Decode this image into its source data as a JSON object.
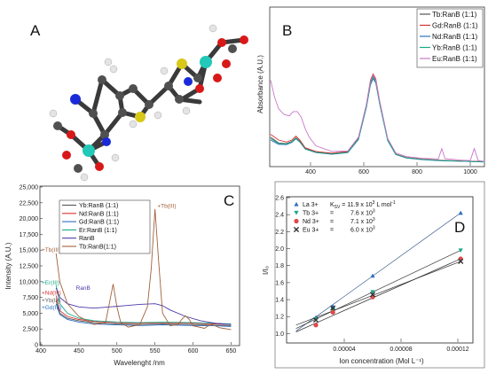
{
  "panels": [
    {
      "label": "A"
    },
    {
      "label": "B"
    },
    {
      "label": "C"
    },
    {
      "label": "D"
    }
  ],
  "colors": {
    "atom_carbon": "#505050",
    "atom_oxygen": "#d81818",
    "atom_nitrogen": "#1a2ad8",
    "atom_sulfur": "#d8c818",
    "atom_metal": "#22c8b8",
    "atom_hydrogen": "#e4e4e4"
  },
  "chart_data": [
    {
      "type": "line",
      "panel": "B",
      "xlabel": "",
      "ylabel": "Absorbance (A.U.)",
      "xlim": [
        250,
        1050
      ],
      "ylim": [
        0,
        0.55
      ],
      "x_ticks": [
        400,
        600,
        800,
        1000
      ],
      "legend_position": "top-right",
      "series": [
        {
          "name": "Tb:RanB (1:1)",
          "color": "#555555",
          "x": [
            250,
            280,
            310,
            330,
            345,
            360,
            380,
            420,
            480,
            540,
            580,
            610,
            625,
            635,
            645,
            660,
            690,
            720,
            760,
            820,
            900,
            1000,
            1050
          ],
          "y": [
            0.1,
            0.08,
            0.078,
            0.085,
            0.098,
            0.086,
            0.06,
            0.048,
            0.042,
            0.048,
            0.095,
            0.21,
            0.29,
            0.315,
            0.298,
            0.22,
            0.09,
            0.04,
            0.028,
            0.022,
            0.018,
            0.015,
            0.014
          ]
        },
        {
          "name": "Gd:RanB (1:1)",
          "color": "#d83030",
          "x": [
            250,
            280,
            310,
            330,
            345,
            360,
            380,
            420,
            480,
            540,
            580,
            610,
            625,
            635,
            645,
            660,
            690,
            720,
            760,
            820,
            900,
            1000,
            1050
          ],
          "y": [
            0.11,
            0.09,
            0.083,
            0.09,
            0.104,
            0.09,
            0.063,
            0.05,
            0.044,
            0.05,
            0.098,
            0.215,
            0.3,
            0.322,
            0.305,
            0.225,
            0.092,
            0.041,
            0.029,
            0.023,
            0.019,
            0.016,
            0.015
          ]
        },
        {
          "name": "Nd:RanB (1:1)",
          "color": "#2d6fbe",
          "x": [
            250,
            280,
            310,
            330,
            345,
            360,
            380,
            420,
            480,
            540,
            580,
            610,
            625,
            635,
            645,
            660,
            690,
            720,
            760,
            820,
            900,
            1000,
            1050
          ],
          "y": [
            0.09,
            0.075,
            0.074,
            0.082,
            0.094,
            0.083,
            0.058,
            0.046,
            0.04,
            0.046,
            0.092,
            0.205,
            0.283,
            0.305,
            0.29,
            0.215,
            0.088,
            0.039,
            0.027,
            0.021,
            0.017,
            0.015,
            0.013
          ]
        },
        {
          "name": "Yb:RanB (1:1)",
          "color": "#18a888",
          "x": [
            250,
            280,
            310,
            330,
            345,
            360,
            380,
            420,
            480,
            540,
            580,
            610,
            625,
            635,
            645,
            660,
            690,
            720,
            760,
            820,
            900,
            1000,
            1050
          ],
          "y": [
            0.095,
            0.078,
            0.076,
            0.084,
            0.096,
            0.084,
            0.059,
            0.047,
            0.041,
            0.047,
            0.094,
            0.208,
            0.287,
            0.31,
            0.294,
            0.218,
            0.089,
            0.04,
            0.028,
            0.022,
            0.018,
            0.015,
            0.014
          ]
        },
        {
          "name": "Eu:RanB (1:1)",
          "color": "#c878c8",
          "x": [
            250,
            265,
            280,
            300,
            320,
            335,
            350,
            365,
            380,
            395,
            420,
            480,
            540,
            580,
            610,
            625,
            635,
            645,
            660,
            690,
            720,
            760,
            820,
            880,
            893,
            905,
            960,
            1000,
            1015,
            1030,
            1050
          ],
          "y": [
            0.3,
            0.24,
            0.2,
            0.18,
            0.175,
            0.19,
            0.19,
            0.17,
            0.13,
            0.1,
            0.07,
            0.05,
            0.052,
            0.1,
            0.215,
            0.295,
            0.318,
            0.3,
            0.225,
            0.095,
            0.045,
            0.032,
            0.026,
            0.024,
            0.06,
            0.025,
            0.02,
            0.018,
            0.06,
            0.018,
            0.016
          ]
        }
      ]
    },
    {
      "type": "line",
      "panel": "C",
      "xlabel": "Wavelenght /nm",
      "ylabel": "Intensity (A.U.)",
      "xlim": [
        400,
        660
      ],
      "ylim": [
        0,
        25000
      ],
      "x_ticks": [
        400,
        450,
        500,
        550,
        600,
        650
      ],
      "y_ticks": [
        0,
        2500,
        5000,
        7500,
        10000,
        12500,
        15000,
        17500,
        20000,
        22500,
        25000
      ],
      "y_tick_labels": [
        "0",
        "2,500",
        "5,000",
        "7,500",
        "10,000",
        "12,500",
        "15,000",
        "17,500",
        "20,000",
        "22,500",
        "25,000"
      ],
      "legend_position": "top-left",
      "series": [
        {
          "name": "Yb:RanB (1:1)",
          "color": "#555555",
          "x": [
            420,
            425,
            435,
            450,
            470,
            500,
            530,
            560,
            600,
            630,
            650
          ],
          "y": [
            7000,
            5000,
            4200,
            3800,
            3500,
            3300,
            3200,
            3300,
            3200,
            3100,
            3000
          ]
        },
        {
          "name": "Nd:RanB (1:1)",
          "color": "#d83030",
          "x": [
            420,
            425,
            435,
            450,
            470,
            500,
            530,
            560,
            600,
            630,
            650
          ],
          "y": [
            7800,
            5400,
            4500,
            4000,
            3700,
            3500,
            3400,
            3500,
            3400,
            3300,
            3200
          ]
        },
        {
          "name": "Gd:RanB (1:1)",
          "color": "#2d6fbe",
          "x": [
            420,
            425,
            435,
            450,
            470,
            500,
            530,
            560,
            600,
            630,
            650
          ],
          "y": [
            6500,
            4800,
            4000,
            3600,
            3300,
            3150,
            3050,
            3150,
            3050,
            3000,
            2900
          ]
        },
        {
          "name": "Er:RanB (1:1)",
          "color": "#18a888",
          "x": [
            420,
            425,
            435,
            450,
            470,
            500,
            530,
            560,
            600,
            630,
            650
          ],
          "y": [
            9500,
            6500,
            5000,
            4200,
            3800,
            3600,
            3500,
            3600,
            3500,
            3400,
            3300
          ]
        },
        {
          "name": "RanB",
          "color": "#4a3aa8",
          "x": [
            420,
            425,
            435,
            450,
            470,
            490,
            510,
            530,
            550,
            560,
            570,
            590,
            610,
            630,
            650
          ],
          "y": [
            9000,
            7500,
            6500,
            6000,
            5800,
            6000,
            6200,
            6400,
            6500,
            6200,
            5500,
            4500,
            3800,
            3400,
            3200
          ]
        },
        {
          "name": "Tb:RanB(1:1)",
          "color": "#a0603a",
          "x": [
            420,
            425,
            435,
            450,
            470,
            485,
            490,
            495,
            500,
            505,
            515,
            530,
            540,
            545,
            550,
            555,
            560,
            570,
            580,
            585,
            590,
            595,
            600,
            615,
            620,
            625,
            635,
            650
          ],
          "y": [
            14500,
            10000,
            6500,
            4500,
            3200,
            3500,
            6500,
            9600,
            6000,
            3500,
            2800,
            3200,
            6000,
            12000,
            21500,
            13000,
            5000,
            3000,
            3200,
            4000,
            4600,
            4000,
            3000,
            2600,
            3000,
            3200,
            2700,
            2400
          ]
        }
      ],
      "annotations": [
        {
          "text": "+Tb(III)",
          "x": 552,
          "y": 22000,
          "color": "#a0603a"
        },
        {
          "text": "+Tb(III)",
          "x": 400,
          "y": 15000,
          "color": "#a0603a"
        },
        {
          "text": "+Er(III)",
          "x": 400,
          "y": 9800,
          "color": "#18a888"
        },
        {
          "text": "RanB",
          "x": 445,
          "y": 9000,
          "color": "#4a3aa8"
        },
        {
          "text": "+Nd(III)",
          "x": 400,
          "y": 8200,
          "color": "#d83030"
        },
        {
          "text": "+Yb(III)",
          "x": 400,
          "y": 7000,
          "color": "#555555"
        },
        {
          "text": "+Gd(III)",
          "x": 400,
          "y": 5900,
          "color": "#2d6fbe"
        }
      ]
    },
    {
      "type": "scatter",
      "panel": "D",
      "xlabel": "Ion concentration (Mol L⁻¹)",
      "ylabel": "I/I₀",
      "xlim": [
        0,
        0.00013
      ],
      "ylim": [
        0.9,
        2.6
      ],
      "x_ticks": [
        4e-05,
        8e-05,
        0.00012
      ],
      "x_tick_labels": [
        "0.00004",
        "0.00008",
        "0.00012"
      ],
      "y_ticks": [
        1.0,
        1.2,
        1.4,
        1.6,
        1.8,
        2.0,
        2.2,
        2.4,
        2.6
      ],
      "y_tick_labels": [
        "1.0",
        "1.2",
        "1.4",
        "1.6",
        "1.8",
        "2.0",
        "2.2",
        "2.4",
        "2.6"
      ],
      "legend_header": {
        "label": "K",
        "sub": "SV",
        "rest": " = 11.9 x 10",
        "exp": "3",
        "unit": "   L mol",
        "unit_exp": "-1"
      },
      "legend_position": "top-left",
      "series": [
        {
          "name": "La 3+",
          "marker": "triangle-up",
          "color": "#2d6fbe",
          "kv": "",
          "exp": "",
          "x": [
            2e-05,
            3.2e-05,
            6e-05,
            0.000122
          ],
          "y": [
            1.19,
            1.32,
            1.68,
            2.42
          ],
          "fit": [
            [
              6e-06,
              1.03
            ],
            [
              0.000122,
              2.42
            ]
          ]
        },
        {
          "name": "Tb 3+",
          "marker": "triangle-down",
          "color": "#18a888",
          "kv": "7.6 x 10",
          "exp": "3",
          "x": [
            2e-05,
            3.2e-05,
            6e-05,
            0.000122
          ],
          "y": [
            1.17,
            1.28,
            1.49,
            1.98
          ],
          "fit": [
            [
              6e-06,
              1.06
            ],
            [
              0.000122,
              1.98
            ]
          ]
        },
        {
          "name": "Nd 3+",
          "marker": "circle",
          "color": "#e04848",
          "kv": "7.1 x 10",
          "exp": "3",
          "x": [
            2e-05,
            3.2e-05,
            6e-05,
            0.000122
          ],
          "y": [
            1.1,
            1.25,
            1.43,
            1.88
          ],
          "fit": [
            [
              6e-06,
              1.02
            ],
            [
              0.000122,
              1.88
            ]
          ]
        },
        {
          "name": "Eu 3+",
          "marker": "x",
          "color": "#333333",
          "kv": "6.0 x 10",
          "exp": "3",
          "x": [
            2e-05,
            3.2e-05,
            6e-05,
            0.000122
          ],
          "y": [
            1.16,
            1.3,
            1.46,
            1.85
          ],
          "fit": [
            [
              6e-06,
              1.1
            ],
            [
              0.000122,
              1.85
            ]
          ]
        }
      ]
    }
  ]
}
